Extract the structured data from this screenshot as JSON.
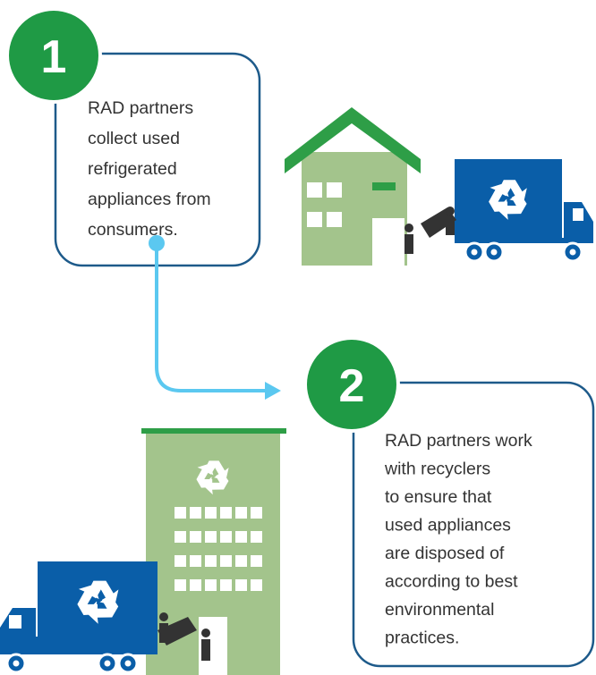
{
  "steps": [
    {
      "number": "1",
      "lines": [
        "RAD partners",
        "collect used",
        "refrigerated",
        "appliances from",
        "consumers."
      ]
    },
    {
      "number": "2",
      "lines": [
        "RAD partners work",
        "with recyclers",
        "to ensure that",
        "used appliances",
        "are disposed of",
        "according to best",
        "environmental",
        "practices."
      ]
    }
  ]
}
